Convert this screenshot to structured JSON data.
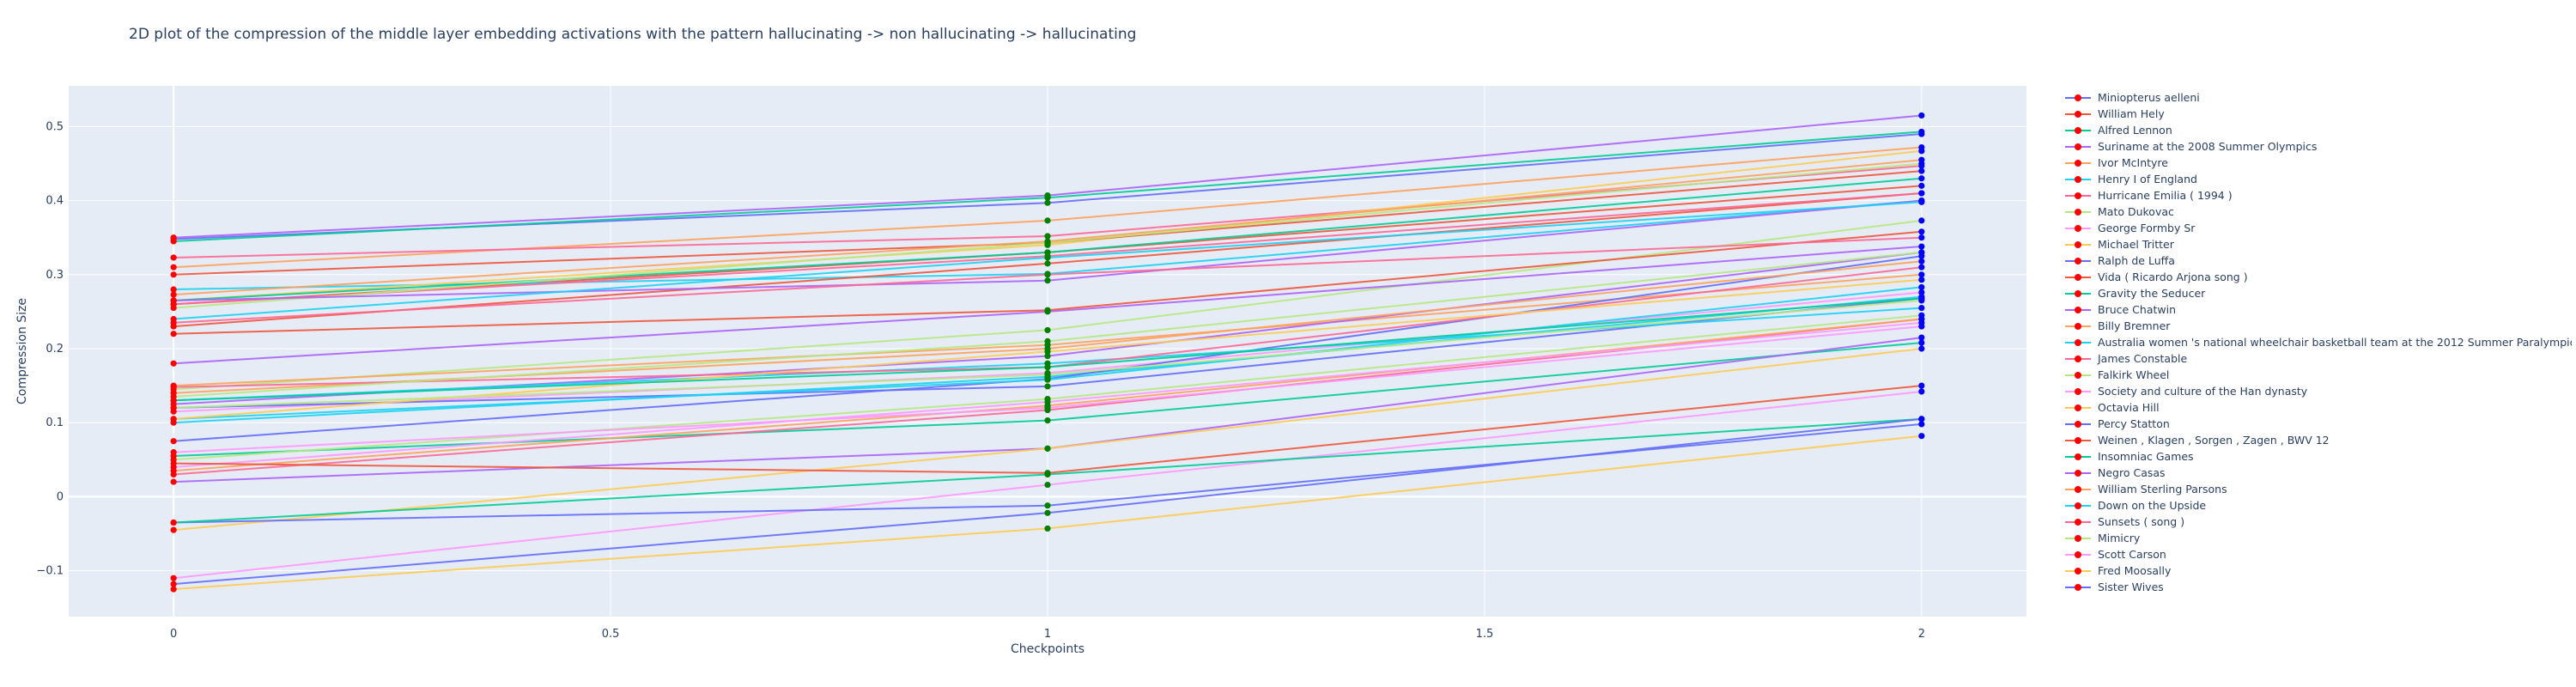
{
  "chart_data": {
    "type": "line",
    "title": "2D plot of the compression of the middle layer embedding activations with the pattern hallucinating -> non hallucinating -> hallucinating",
    "xlabel": "Checkpoints",
    "ylabel": "Compression Size",
    "x": [
      0,
      1,
      2
    ],
    "xlim": [
      -0.12,
      2.12
    ],
    "ylim": [
      -0.162,
      0.555
    ],
    "xticks": [
      "0",
      "0.5",
      "1",
      "1.5",
      "2"
    ],
    "yticks": [
      "−0.1",
      "0",
      "0.1",
      "0.2",
      "0.3",
      "0.4",
      "0.5"
    ],
    "grid": true,
    "legend_position": "right",
    "marker_colors": [
      "red",
      "green",
      "blue"
    ],
    "series": [
      {
        "name": "Miniopterus aelleni",
        "color": "#636efa",
        "values": [
          0.348,
          0.397,
          0.49
        ]
      },
      {
        "name": "William Hely",
        "color": "#ef553b",
        "values": [
          0.26,
          0.33,
          0.42
        ]
      },
      {
        "name": "Alfred Lennon",
        "color": "#00cc96",
        "values": [
          0.345,
          0.404,
          0.493
        ]
      },
      {
        "name": "Suriname at the 2008 Summer Olympics",
        "color": "#ab63fa",
        "values": [
          0.35,
          0.407,
          0.515
        ]
      },
      {
        "name": "Ivor McIntyre",
        "color": "#ffa15a",
        "values": [
          0.31,
          0.373,
          0.472
        ]
      },
      {
        "name": "Henry I of England",
        "color": "#19d3f3",
        "values": [
          0.28,
          0.301,
          0.4
        ]
      },
      {
        "name": "Hurricane Emilia ( 1994 )",
        "color": "#ff6692",
        "values": [
          0.323,
          0.352,
          0.447
        ]
      },
      {
        "name": "Mato Dukovac",
        "color": "#b6e880",
        "values": [
          0.145,
          0.225,
          0.373
        ]
      },
      {
        "name": "George Formby Sr",
        "color": "#ff97ff",
        "values": [
          0.115,
          0.167,
          0.276
        ]
      },
      {
        "name": "Michael Tritter",
        "color": "#fecb52",
        "values": [
          0.265,
          0.34,
          0.467
        ]
      },
      {
        "name": "Ralph de Luffa",
        "color": "#636efa",
        "values": [
          0.12,
          0.149,
          0.268
        ]
      },
      {
        "name": "Vida ( Ricardo Arjona song )",
        "color": "#ef553b",
        "values": [
          0.3,
          0.343,
          0.44
        ]
      },
      {
        "name": "Gravity the Seducer",
        "color": "#00cc96",
        "values": [
          0.055,
          0.103,
          0.208
        ]
      },
      {
        "name": "Bruce Chatwin",
        "color": "#ab63fa",
        "values": [
          0.18,
          0.25,
          0.338
        ]
      },
      {
        "name": "Billy Bremner",
        "color": "#ffa15a",
        "values": [
          0.15,
          0.205,
          0.3
        ]
      },
      {
        "name": "Australia women 's national wheelchair basketball team at the 2012 Summer Paralympics",
        "color": "#19d3f3",
        "values": [
          0.1,
          0.162,
          0.27
        ]
      },
      {
        "name": "James Constable",
        "color": "#ff6692",
        "values": [
          0.03,
          0.117,
          0.24
        ]
      },
      {
        "name": "Falkirk Wheel",
        "color": "#b6e880",
        "values": [
          0.05,
          0.132,
          0.245
        ]
      },
      {
        "name": "Society and culture of the Han dynasty",
        "color": "#ff97ff",
        "values": [
          -0.11,
          0.016,
          0.142
        ]
      },
      {
        "name": "Octavia Hill",
        "color": "#fecb52",
        "values": [
          -0.125,
          -0.043,
          0.082
        ]
      },
      {
        "name": "Percy Statton",
        "color": "#636efa",
        "values": [
          0.075,
          0.159,
          0.325
        ]
      },
      {
        "name": "Weinen , Klagen , Sorgen , Zagen , BWV 12",
        "color": "#ef553b",
        "values": [
          0.23,
          0.315,
          0.41
        ]
      },
      {
        "name": "Insomniac Games",
        "color": "#00cc96",
        "values": [
          0.265,
          0.33,
          0.43
        ]
      },
      {
        "name": "Negro Casas",
        "color": "#ab63fa",
        "values": [
          0.02,
          0.065,
          0.215
        ]
      },
      {
        "name": "William Sterling Parsons",
        "color": "#ffa15a",
        "values": [
          0.035,
          0.123,
          0.24
        ]
      },
      {
        "name": "Down on the Upside",
        "color": "#19d3f3",
        "values": [
          0.105,
          0.158,
          0.283
        ]
      },
      {
        "name": "Sunsets ( song )",
        "color": "#ff6692",
        "values": [
          0.26,
          0.325,
          0.41
        ]
      },
      {
        "name": "Mimicry",
        "color": "#b6e880",
        "values": [
          0.255,
          0.343,
          0.45
        ]
      },
      {
        "name": "Scott Carson",
        "color": "#ff97ff",
        "values": [
          0.04,
          0.128,
          0.235
        ]
      },
      {
        "name": "Fred Moosally",
        "color": "#fecb52",
        "values": [
          -0.045,
          0.065,
          0.2
        ]
      },
      {
        "name": "Sister Wives",
        "color": "#636efa",
        "values": [
          -0.035,
          -0.012,
          0.098
        ]
      },
      {
        "name": "",
        "color": "#ef553b",
        "values": [
          0.22,
          0.252,
          0.358
        ]
      },
      {
        "name": "",
        "color": "#00cc96",
        "values": [
          -0.035,
          0.03,
          0.105
        ]
      },
      {
        "name": "",
        "color": "#ab63fa",
        "values": [
          0.125,
          0.19,
          0.33
        ]
      },
      {
        "name": "",
        "color": "#ffa15a",
        "values": [
          0.14,
          0.2,
          0.318
        ]
      },
      {
        "name": "",
        "color": "#19d3f3",
        "values": [
          0.13,
          0.18,
          0.255
        ]
      },
      {
        "name": "",
        "color": "#ff6692",
        "values": [
          0.148,
          0.175,
          0.31
        ]
      },
      {
        "name": "",
        "color": "#b6e880",
        "values": [
          0.135,
          0.21,
          0.33
        ]
      },
      {
        "name": "",
        "color": "#ff97ff",
        "values": [
          0.06,
          0.12,
          0.23
        ]
      },
      {
        "name": "",
        "color": "#fecb52",
        "values": [
          0.105,
          0.196,
          0.293
        ]
      },
      {
        "name": "",
        "color": "#636efa",
        "values": [
          -0.118,
          -0.022,
          0.105
        ]
      },
      {
        "name": "",
        "color": "#ef553b",
        "values": [
          0.045,
          0.032,
          0.15
        ]
      },
      {
        "name": "",
        "color": "#00cc96",
        "values": [
          0.13,
          0.175,
          0.268
        ]
      },
      {
        "name": "",
        "color": "#ab63fa",
        "values": [
          0.265,
          0.292,
          0.4
        ]
      },
      {
        "name": "",
        "color": "#ffa15a",
        "values": [
          0.273,
          0.345,
          0.455
        ]
      },
      {
        "name": "",
        "color": "#19d3f3",
        "values": [
          0.24,
          0.323,
          0.398
        ]
      },
      {
        "name": "",
        "color": "#ff6692",
        "values": [
          0.235,
          0.3,
          0.35
        ]
      },
      {
        "name": "",
        "color": "#b6e880",
        "values": [
          0.12,
          0.165,
          0.265
        ]
      }
    ]
  }
}
